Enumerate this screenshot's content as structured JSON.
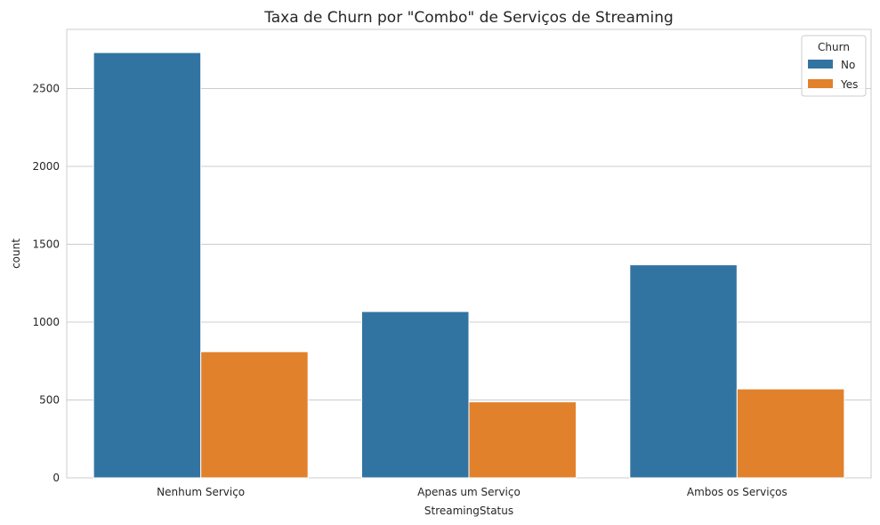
{
  "chart_data": {
    "type": "bar",
    "title": "Taxa de Churn por \"Combo\" de Serviços de Streaming",
    "xlabel": "StreamingStatus",
    "ylabel": "count",
    "categories": [
      "Nenhum Serviço",
      "Apenas um Serviço",
      "Ambos os Serviços"
    ],
    "series": [
      {
        "name": "No",
        "values": [
          2731,
          1068,
          1368
        ],
        "color": "#3274a1"
      },
      {
        "name": "Yes",
        "values": [
          810,
          488,
          571
        ],
        "color": "#e1812c"
      }
    ],
    "ylim": [
      0,
      2880
    ],
    "yticks": [
      0,
      500,
      1000,
      1500,
      2000,
      2500
    ],
    "grid": true,
    "legend": {
      "title": "Churn",
      "placement": "top-right"
    }
  }
}
